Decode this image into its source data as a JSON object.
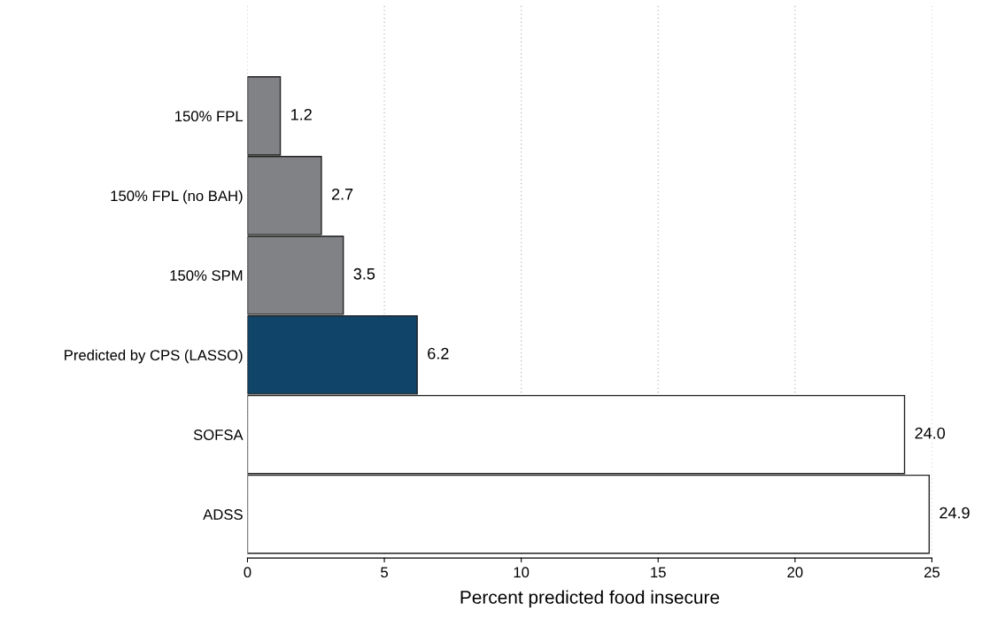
{
  "chart_data": {
    "type": "bar",
    "orientation": "horizontal",
    "xlabel": "Percent predicted food insecure",
    "categories": [
      "150% FPL",
      "150% FPL (no BAH)",
      "150% SPM",
      "Predicted by CPS (LASSO)",
      "SOFSA",
      "ADSS"
    ],
    "values": [
      1.2,
      2.7,
      3.5,
      6.2,
      24.0,
      24.9
    ],
    "colors": [
      "#808285",
      "#808285",
      "#808285",
      "#114469",
      "#ffffff",
      "#ffffff"
    ],
    "value_labels": [
      "1.2",
      "2.7",
      "3.5",
      "6.2",
      "24.0",
      "24.9"
    ],
    "xlim": [
      0,
      25
    ],
    "xticks": [
      0,
      5,
      10,
      15,
      20,
      25
    ],
    "grid": "x",
    "legend": false
  }
}
